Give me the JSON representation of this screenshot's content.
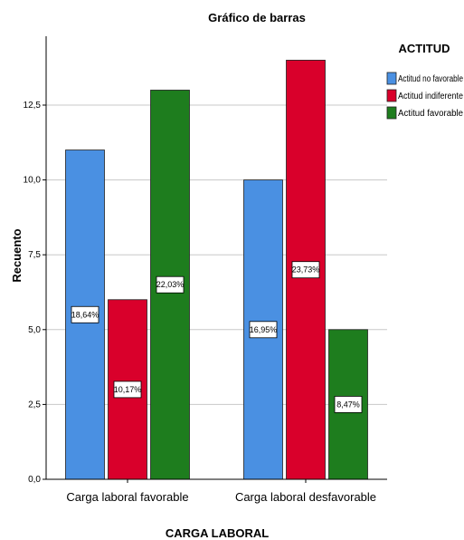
{
  "chart_data": {
    "type": "bar",
    "title": "Gráfico de barras",
    "xlabel": "CARGA LABORAL",
    "ylabel": "Recuento",
    "categories": [
      "Carga laboral favorable",
      "Carga laboral desfavorable"
    ],
    "series": [
      {
        "name": "Actitud no favorable",
        "color": "#4a90e2",
        "values": [
          11,
          10
        ],
        "labels": [
          "18,64%",
          "16,95%"
        ]
      },
      {
        "name": "Actitud indiferente",
        "color": "#d9002b",
        "values": [
          6,
          14
        ],
        "labels": [
          "10,17%",
          "23,73%"
        ]
      },
      {
        "name": "Actitud  favorable",
        "color": "#1e7d1e",
        "values": [
          13,
          5
        ],
        "labels": [
          "22,03%",
          "8,47%"
        ]
      }
    ],
    "ylim": [
      0,
      14.8
    ],
    "yticks": [
      "0,0",
      "2,5",
      "5,0",
      "7,5",
      "10,0",
      "12,5"
    ],
    "ytick_values": [
      0,
      2.5,
      5,
      7.5,
      10,
      12.5
    ],
    "grid": true,
    "legend": {
      "title": "ACTITUD",
      "placement": "top-right"
    }
  }
}
